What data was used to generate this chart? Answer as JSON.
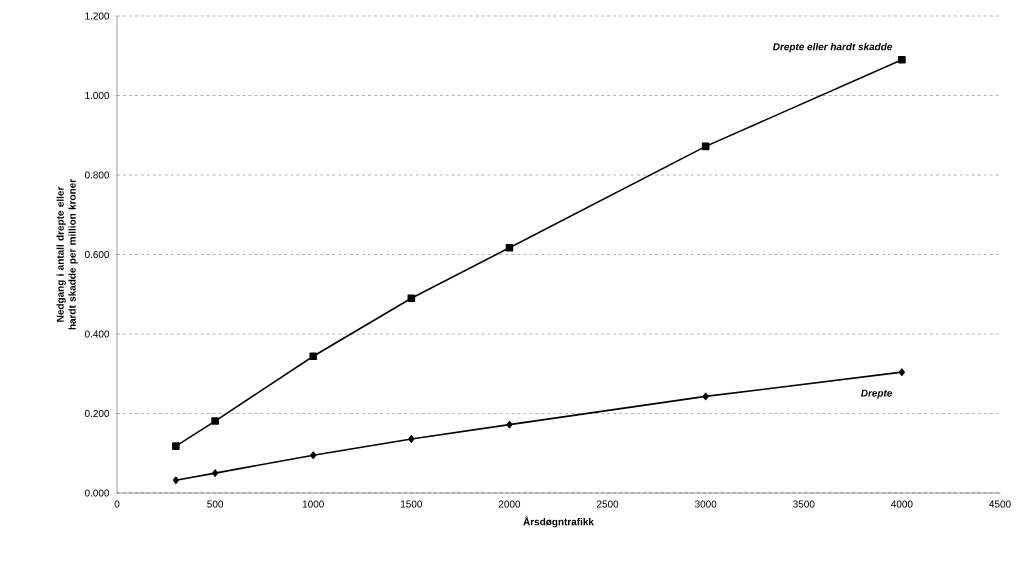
{
  "chart_data": {
    "type": "line",
    "xlabel": "Årsdøgntrafikk",
    "ylabel": "Nedgang i antall drepte eller hardt skadde per million kroner",
    "x": [
      300,
      500,
      1000,
      1500,
      2000,
      3000,
      4000
    ],
    "series": [
      {
        "name": "Drepte eller hardt skadde",
        "color": "#000000",
        "marker": "square",
        "values": [
          0.118,
          0.181,
          0.344,
          0.49,
          0.617,
          0.872,
          1.09
        ]
      },
      {
        "name": "Drepte",
        "color": "#000000",
        "marker": "diamond",
        "values": [
          0.032,
          0.05,
          0.095,
          0.136,
          0.172,
          0.243,
          0.304
        ]
      }
    ],
    "xlim": [
      0,
      4500
    ],
    "xticks": [
      0,
      500,
      1000,
      1500,
      2000,
      2500,
      3000,
      3500,
      4000,
      4500
    ],
    "ylim": [
      0,
      1.2
    ],
    "yticks": [
      {
        "value": 0,
        "label": "0.000"
      },
      {
        "value": 0.2,
        "label": "0.200"
      },
      {
        "value": 0.4,
        "label": "0.400"
      },
      {
        "value": 0.6,
        "label": "0.600"
      },
      {
        "value": 0.8,
        "label": "0.800"
      },
      {
        "value": 1.0,
        "label": "1.000"
      },
      {
        "value": 1.2,
        "label": "1.200"
      }
    ],
    "grid": "y",
    "line_style": "solid",
    "legend": false
  }
}
